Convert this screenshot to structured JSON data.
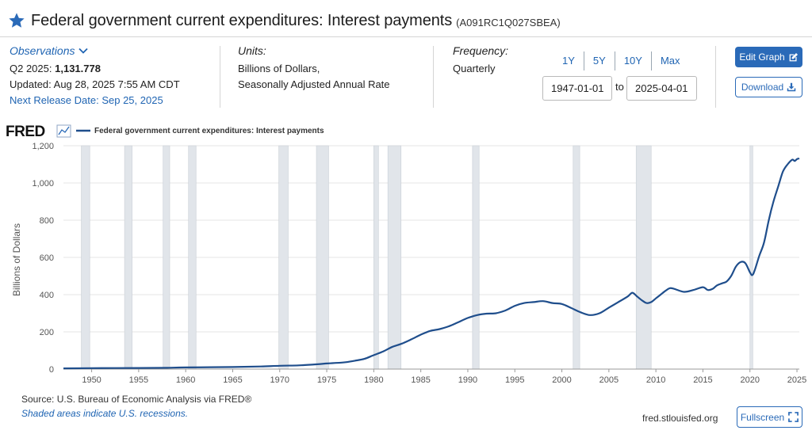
{
  "header": {
    "title": "Federal government current expenditures: Interest payments",
    "series_id": "(A091RC1Q027SBEA)"
  },
  "observations": {
    "label": "Observations",
    "period_label": "Q2 2025:",
    "latest_value": "1,131.778",
    "updated": "Updated: Aug 28, 2025 7:55 AM CDT",
    "next_release": "Next Release Date: Sep 25, 2025"
  },
  "units": {
    "label": "Units:",
    "line1": "Billions of Dollars,",
    "line2": "Seasonally Adjusted Annual Rate"
  },
  "frequency": {
    "label": "Frequency:",
    "value": "Quarterly"
  },
  "range_buttons": [
    "1Y",
    "5Y",
    "10Y",
    "Max"
  ],
  "date_range": {
    "start": "1947-01-01",
    "to_label": "to",
    "end": "2025-04-01"
  },
  "actions": {
    "edit_graph": "Edit Graph",
    "download": "Download",
    "fullscreen": "Fullscreen"
  },
  "footer": {
    "source": "Source: U.S. Bureau of Economic Analysis via FRED®",
    "shaded_note": "Shaded areas indicate U.S. recessions.",
    "site": "fred.stlouisfed.org"
  },
  "colors": {
    "line": "#1f4e8c",
    "recession": "#e1e5ea",
    "accent": "#2a6ab8",
    "link": "#2065b3"
  },
  "chart_data": {
    "type": "line",
    "title": "Federal government current expenditures: Interest payments",
    "logo": "FRED",
    "legend": [
      "Federal government current expenditures: Interest payments"
    ],
    "ylabel": "Billions of Dollars",
    "xlabel": "",
    "xlim": [
      1947.0,
      2025.25
    ],
    "ylim": [
      0,
      1200
    ],
    "yticks": [
      0,
      200,
      400,
      600,
      800,
      1000,
      1200
    ],
    "ytick_labels": [
      "0",
      "200",
      "400",
      "600",
      "800",
      "1,000",
      "1,200"
    ],
    "xticks": [
      1950,
      1955,
      1960,
      1965,
      1970,
      1975,
      1980,
      1985,
      1990,
      1995,
      2000,
      2005,
      2010,
      2015,
      2020,
      2025
    ],
    "xtick_labels": [
      "1950",
      "1955",
      "1960",
      "1965",
      "1970",
      "1975",
      "1980",
      "1985",
      "1990",
      "1995",
      "2000",
      "2005",
      "2010",
      "2015",
      "2020",
      "2025"
    ],
    "grid": "horizontal",
    "recessions": [
      [
        1948.9,
        1949.8
      ],
      [
        1953.5,
        1954.3
      ],
      [
        1957.6,
        1958.3
      ],
      [
        1960.3,
        1961.1
      ],
      [
        1969.9,
        1970.9
      ],
      [
        1973.9,
        1975.2
      ],
      [
        1980.0,
        1980.5
      ],
      [
        1981.5,
        1982.9
      ],
      [
        1990.5,
        1991.2
      ],
      [
        2001.2,
        2001.9
      ],
      [
        2007.9,
        2009.5
      ],
      [
        2020.0,
        2020.3
      ]
    ],
    "series": [
      {
        "name": "Federal government current expenditures: Interest payments",
        "x": [
          1947.0,
          1950.0,
          1955.0,
          1958.0,
          1960.0,
          1965.0,
          1968.0,
          1970.0,
          1972.0,
          1974.0,
          1975.0,
          1976.0,
          1977.0,
          1978.0,
          1979.0,
          1980.0,
          1981.0,
          1982.0,
          1983.0,
          1984.0,
          1985.0,
          1986.0,
          1987.0,
          1988.0,
          1989.0,
          1990.0,
          1991.0,
          1992.0,
          1993.0,
          1994.0,
          1995.0,
          1996.0,
          1997.0,
          1998.0,
          1999.0,
          2000.0,
          2001.0,
          2002.0,
          2003.0,
          2004.0,
          2005.0,
          2006.0,
          2007.0,
          2007.5,
          2008.0,
          2008.5,
          2009.0,
          2009.5,
          2010.0,
          2010.5,
          2011.0,
          2011.5,
          2012.0,
          2013.0,
          2014.0,
          2015.0,
          2015.5,
          2016.0,
          2016.5,
          2017.0,
          2017.5,
          2018.0,
          2018.5,
          2019.0,
          2019.5,
          2020.0,
          2020.25,
          2020.5,
          2021.0,
          2021.5,
          2022.0,
          2022.5,
          2023.0,
          2023.5,
          2024.0,
          2024.5,
          2024.75,
          2025.0,
          2025.25
        ],
        "values": [
          4,
          5,
          6,
          7,
          9,
          11,
          14,
          18,
          20,
          26,
          30,
          33,
          37,
          45,
          55,
          75,
          95,
          120,
          137,
          160,
          185,
          205,
          215,
          230,
          252,
          275,
          290,
          298,
          300,
          315,
          340,
          355,
          360,
          365,
          355,
          350,
          328,
          305,
          290,
          300,
          330,
          360,
          390,
          410,
          390,
          370,
          355,
          360,
          380,
          400,
          420,
          435,
          430,
          415,
          425,
          440,
          425,
          430,
          450,
          460,
          470,
          500,
          550,
          575,
          570,
          520,
          505,
          530,
          610,
          680,
          800,
          900,
          980,
          1060,
          1100,
          1125,
          1118,
          1128,
          1131.778
        ]
      }
    ]
  }
}
